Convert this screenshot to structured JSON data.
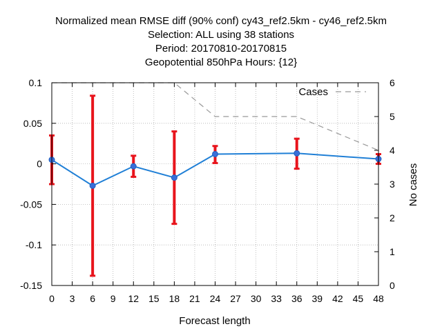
{
  "chart_data": {
    "type": "line",
    "title_lines": [
      "Normalized mean RMSE diff (90% conf) cy43_ref2.5km - cy46_ref2.5km",
      "Selection: ALL using    38 stations",
      "Period: 20170810-20170815",
      "Geopotential 850hPa   Hours: {12}"
    ],
    "xlabel": "Forecast length",
    "ylabel_left": "",
    "ylabel_right": "No cases",
    "xlim": [
      0,
      48
    ],
    "ylim_left": [
      -0.15,
      0.1
    ],
    "ylim_right": [
      0,
      6
    ],
    "x_ticks": [
      0,
      3,
      6,
      9,
      12,
      15,
      18,
      21,
      24,
      27,
      30,
      33,
      36,
      39,
      42,
      45,
      48
    ],
    "y_ticks_left": [
      -0.15,
      -0.1,
      -0.05,
      0,
      0.05,
      0.1
    ],
    "y_tick_labels_left": [
      "-0.15",
      "-0.1",
      "-0.05",
      "0",
      "0.05",
      "0.1"
    ],
    "y_ticks_right": [
      0,
      1,
      2,
      3,
      4,
      5,
      6
    ],
    "grid": true,
    "legend_position": "top-right",
    "series": [
      {
        "axis": "left",
        "color": "#1f7fd6",
        "marker_color": "#3a6fd8",
        "errorbar_color": "#e8141c",
        "points": [
          {
            "x": 0,
            "y": 0.005,
            "low": -0.025,
            "high": 0.035
          },
          {
            "x": 6,
            "y": -0.027,
            "low": -0.138,
            "high": 0.084
          },
          {
            "x": 12,
            "y": -0.003,
            "low": -0.016,
            "high": 0.01
          },
          {
            "x": 18,
            "y": -0.017,
            "low": -0.074,
            "high": 0.04
          },
          {
            "x": 24,
            "y": 0.012,
            "low": 0.001,
            "high": 0.022
          },
          {
            "x": 36,
            "y": 0.013,
            "low": -0.006,
            "high": 0.031
          },
          {
            "x": 48,
            "y": 0.006,
            "low": 0.0,
            "high": 0.012
          }
        ]
      },
      {
        "name": "Cases",
        "axis": "right",
        "color": "#999999",
        "dashed": true,
        "x": [
          0,
          6,
          12,
          18,
          24,
          36,
          48
        ],
        "values": [
          6,
          6,
          6,
          6,
          5,
          5,
          4
        ]
      }
    ]
  }
}
